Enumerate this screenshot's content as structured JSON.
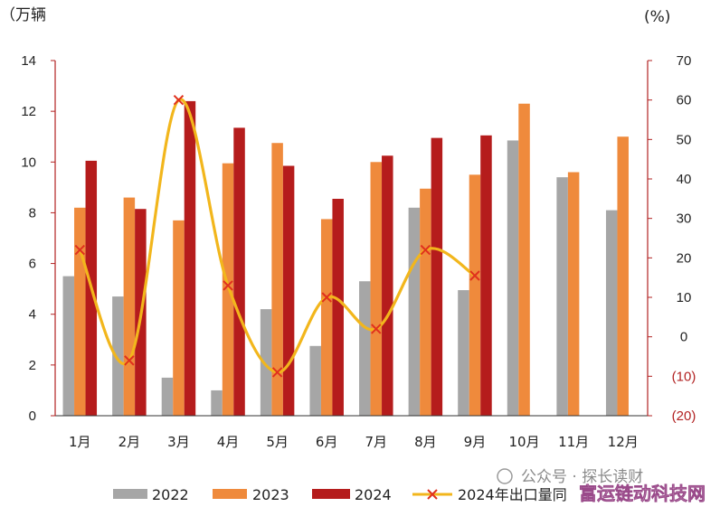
{
  "chart_data": {
    "type": "bar",
    "left_axis_unit": "（万辆",
    "right_axis_unit": "(%)",
    "categories": [
      "1月",
      "2月",
      "3月",
      "4月",
      "5月",
      "6月",
      "7月",
      "8月",
      "9月",
      "10月",
      "11月",
      "12月"
    ],
    "series": [
      {
        "name": "2022",
        "color": "#a6a6a6",
        "values": [
          5.5,
          4.7,
          1.5,
          1.0,
          4.2,
          2.75,
          5.3,
          8.2,
          4.95,
          10.85,
          9.4,
          8.1
        ]
      },
      {
        "name": "2023",
        "color": "#ef8a3c",
        "values": [
          8.2,
          8.6,
          7.7,
          9.95,
          10.75,
          7.75,
          10.0,
          8.95,
          9.5,
          12.3,
          9.6,
          11.0
        ]
      },
      {
        "name": "2024",
        "color": "#b51c1c",
        "values": [
          10.05,
          8.15,
          12.4,
          11.35,
          9.85,
          8.55,
          10.25,
          10.95,
          11.05,
          null,
          null,
          null
        ]
      }
    ],
    "line_series": {
      "name": "2024年出口量同",
      "color": "#f2b61c",
      "marker_color": "#e0301e",
      "axis": "right",
      "values": [
        22,
        -6,
        60,
        13,
        -9,
        10,
        2,
        22,
        15.5,
        null,
        null,
        null
      ]
    },
    "left_ylim": [
      0,
      14
    ],
    "left_ticks": [
      "0",
      "2",
      "4",
      "6",
      "8",
      "10",
      "12",
      "14"
    ],
    "right_ylim": [
      -20,
      70
    ],
    "right_ticks": [
      "(20)",
      "(10)",
      "0",
      "10",
      "20",
      "30",
      "40",
      "50",
      "60",
      "70"
    ],
    "legend_position": "bottom",
    "grid": false
  },
  "watermark": {
    "text": "公众号 · 探长读财",
    "overlay": "富运链动科技网"
  }
}
